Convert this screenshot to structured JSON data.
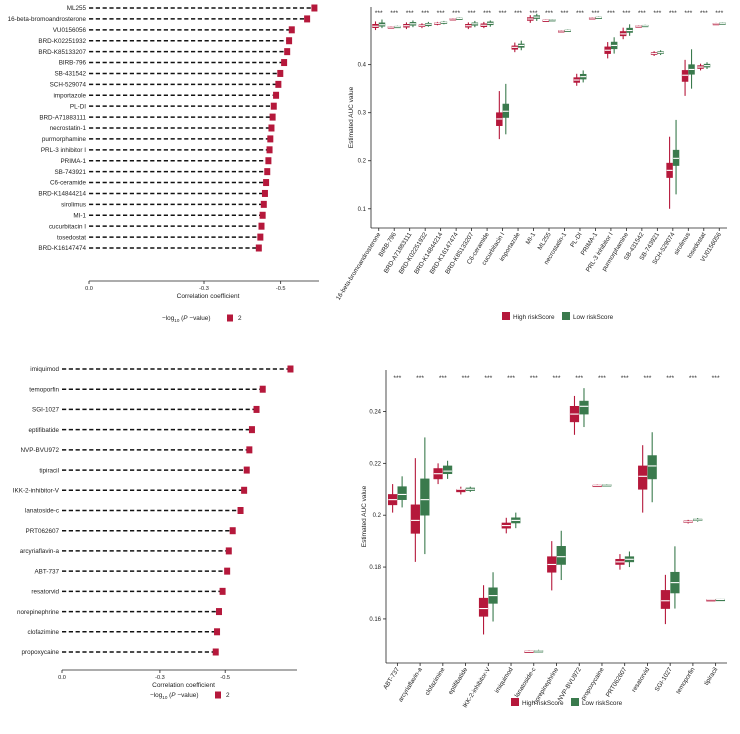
{
  "colors": {
    "high": "#b5183b",
    "low": "#3a7a4d",
    "axis": "#222222",
    "dash": "#111111"
  },
  "chart_data": [
    {
      "type": "lollipop",
      "panel": "top-left",
      "xlabel": "Correlation coefficient",
      "xlim": [
        0,
        -0.6
      ],
      "xticks": [
        {
          "v": 0.0,
          "label": "0.0"
        },
        {
          "v": -0.3,
          "label": "-0.3"
        },
        {
          "v": -0.5,
          "label": "-0.5"
        }
      ],
      "legend": {
        "title_prefix": "−log",
        "title_sub": "10",
        "title_suffix": " (",
        "title_p": "P",
        "title_end": " −value)",
        "value": "2"
      },
      "categories": [
        "ML255",
        "16-beta-bromoandrosterone",
        "VU0156056",
        "BRD-K02251932",
        "BRD-K85133207",
        "BIRB-796",
        "SB-431542",
        "SCH-529074",
        "importazole",
        "PL-DI",
        "BRD-A71883111",
        "necrostatin-1",
        "purmorphamine",
        "PRL-3 inhibitor I",
        "PRIMA-1",
        "SB-743921",
        "C6-ceramide",
        "BRD-K14844214",
        "sirolimus",
        "MI-1",
        "cucurbitacin I",
        "tosedostat",
        "BRD-K16147474"
      ],
      "values": [
        -0.588,
        -0.569,
        -0.529,
        -0.522,
        -0.517,
        -0.509,
        -0.499,
        -0.494,
        -0.488,
        -0.482,
        -0.479,
        -0.476,
        -0.473,
        -0.471,
        -0.468,
        -0.465,
        -0.462,
        -0.459,
        -0.456,
        -0.453,
        -0.45,
        -0.447,
        -0.443
      ]
    },
    {
      "type": "boxplot",
      "panel": "top-right",
      "ylabel": "Estimated AUC value",
      "ylim": [
        0.06,
        0.52
      ],
      "yticks": [
        0.1,
        0.2,
        0.3,
        0.4
      ],
      "significance": "***",
      "legend": {
        "high": "High riskScore",
        "low": "Low riskScore"
      },
      "categories": [
        "16-beta-bromoandrosterone",
        "BIRB-796",
        "BRD-A71883111",
        "BRD-K02251932",
        "BRD-K14844214",
        "BRD-K16147474",
        "BRD-K85133207",
        "C6-ceramide",
        "cucurbitacin I",
        "importazole",
        "MI-1",
        "ML255",
        "necrostatin-1",
        "PL-DI",
        "PRIMA-1",
        "PRL-3 inhibitor I",
        "purmorphamine",
        "SB-431542",
        "SB-743921",
        "SCH-529074",
        "sirolimus",
        "tosedostat",
        "VU0156056"
      ],
      "series": [
        {
          "name": "High riskScore",
          "boxes": [
            [
              0.472,
              0.477,
              0.48,
              0.484,
              0.49
            ],
            [
              0.476,
              0.477,
              0.478,
              0.479,
              0.48
            ],
            [
              0.474,
              0.478,
              0.481,
              0.484,
              0.488
            ],
            [
              0.476,
              0.479,
              0.481,
              0.483,
              0.486
            ],
            [
              0.482,
              0.484,
              0.486,
              0.487,
              0.489
            ],
            [
              0.493,
              0.494,
              0.495,
              0.496,
              0.497
            ],
            [
              0.474,
              0.478,
              0.481,
              0.484,
              0.488
            ],
            [
              0.476,
              0.479,
              0.482,
              0.485,
              0.489
            ],
            [
              0.245,
              0.273,
              0.287,
              0.3,
              0.345
            ],
            [
              0.426,
              0.432,
              0.436,
              0.439,
              0.446
            ],
            [
              0.487,
              0.492,
              0.495,
              0.498,
              0.503
            ],
            [
              0.49,
              0.491,
              0.492,
              0.493,
              0.494
            ],
            [
              0.468,
              0.469,
              0.47,
              0.471,
              0.472
            ],
            [
              0.356,
              0.363,
              0.368,
              0.373,
              0.381
            ],
            [
              0.495,
              0.496,
              0.497,
              0.498,
              0.499
            ],
            [
              0.413,
              0.423,
              0.43,
              0.437,
              0.447
            ],
            [
              0.453,
              0.46,
              0.464,
              0.469,
              0.477
            ],
            [
              0.478,
              0.479,
              0.48,
              0.481,
              0.482
            ],
            [
              0.418,
              0.421,
              0.423,
              0.425,
              0.428
            ],
            [
              0.1,
              0.165,
              0.18,
              0.195,
              0.25
            ],
            [
              0.335,
              0.365,
              0.378,
              0.388,
              0.41
            ],
            [
              0.388,
              0.392,
              0.395,
              0.398,
              0.402
            ],
            [
              0.483,
              0.484,
              0.485,
              0.486,
              0.487
            ]
          ]
        },
        {
          "name": "Low riskScore",
          "boxes": [
            [
              0.476,
              0.48,
              0.483,
              0.487,
              0.494
            ],
            [
              0.477,
              0.478,
              0.479,
              0.48,
              0.481
            ],
            [
              0.478,
              0.482,
              0.485,
              0.488,
              0.492
            ],
            [
              0.479,
              0.481,
              0.484,
              0.486,
              0.489
            ],
            [
              0.484,
              0.486,
              0.488,
              0.489,
              0.491
            ],
            [
              0.494,
              0.495,
              0.496,
              0.497,
              0.498
            ],
            [
              0.478,
              0.482,
              0.485,
              0.487,
              0.491
            ],
            [
              0.479,
              0.483,
              0.486,
              0.489,
              0.492
            ],
            [
              0.255,
              0.29,
              0.303,
              0.318,
              0.36
            ],
            [
              0.43,
              0.436,
              0.44,
              0.443,
              0.45
            ],
            [
              0.491,
              0.496,
              0.499,
              0.502,
              0.506
            ],
            [
              0.491,
              0.492,
              0.493,
              0.494,
              0.495
            ],
            [
              0.469,
              0.47,
              0.471,
              0.472,
              0.473
            ],
            [
              0.363,
              0.37,
              0.375,
              0.38,
              0.388
            ],
            [
              0.496,
              0.497,
              0.498,
              0.499,
              0.5
            ],
            [
              0.423,
              0.433,
              0.44,
              0.447,
              0.457
            ],
            [
              0.46,
              0.467,
              0.471,
              0.476,
              0.484
            ],
            [
              0.479,
              0.48,
              0.481,
              0.482,
              0.483
            ],
            [
              0.42,
              0.423,
              0.425,
              0.427,
              0.43
            ],
            [
              0.13,
              0.19,
              0.205,
              0.222,
              0.285
            ],
            [
              0.35,
              0.38,
              0.39,
              0.4,
              0.432
            ],
            [
              0.391,
              0.395,
              0.398,
              0.401,
              0.405
            ],
            [
              0.484,
              0.485,
              0.486,
              0.487,
              0.488
            ]
          ]
        }
      ]
    },
    {
      "type": "lollipop",
      "panel": "bottom-left",
      "xlabel": "Correlation coefficient",
      "xlim": [
        0,
        -0.72
      ],
      "xticks": [
        {
          "v": 0.0,
          "label": "0.0"
        },
        {
          "v": -0.3,
          "label": "-0.3"
        },
        {
          "v": -0.5,
          "label": "-0.5"
        }
      ],
      "legend": {
        "title_prefix": "−log",
        "title_sub": "10",
        "title_suffix": " (",
        "title_p": "P",
        "title_end": " −value)",
        "value": "2"
      },
      "categories": [
        "imiquimod",
        "temoporfin",
        "SGI-1027",
        "eptifibatide",
        "NVP-BVU972",
        "tipiracil",
        "IKK-2-inhibitor-V",
        "lanatoside-c",
        "PRT062607",
        "arcyriaflavin-a",
        "ABT-737",
        "resatorvid",
        "norepinephrine",
        "clofazimine",
        "propoxycaine"
      ],
      "values": [
        -0.7,
        -0.615,
        -0.596,
        -0.582,
        -0.574,
        -0.566,
        -0.558,
        -0.547,
        -0.523,
        -0.511,
        -0.506,
        -0.492,
        -0.481,
        -0.475,
        -0.471
      ]
    },
    {
      "type": "boxplot",
      "panel": "bottom-right",
      "ylabel": "Estimated AUC value",
      "ylim": [
        0.143,
        0.256
      ],
      "yticks": [
        0.16,
        0.18,
        0.2,
        0.22,
        0.24
      ],
      "significance": "***",
      "legend": {
        "high": "High riskScore",
        "low": "Low riskScore"
      },
      "categories": [
        "ABT-737",
        "arcyriaflavin-a",
        "clofazimine",
        "eptifibatide",
        "IKK-2-inhibitor-V",
        "imiquimod",
        "lanatoside-c",
        "norepinephrine",
        "NVP-BVU972",
        "propoxycaine",
        "PRT062607",
        "resatorvid",
        "SGI-1027",
        "temoporfin",
        "tipiracil"
      ],
      "series": [
        {
          "name": "High riskScore",
          "boxes": [
            [
              0.201,
              0.204,
              0.206,
              0.208,
              0.212
            ],
            [
              0.182,
              0.193,
              0.198,
              0.204,
              0.222
            ],
            [
              0.212,
              0.214,
              0.216,
              0.218,
              0.22
            ],
            [
              0.208,
              0.209,
              0.21,
              0.21,
              0.211
            ],
            [
              0.154,
              0.161,
              0.164,
              0.168,
              0.173
            ],
            [
              0.193,
              0.195,
              0.196,
              0.197,
              0.199
            ],
            [
              0.147,
              0.1472,
              0.1474,
              0.1476,
              0.1478
            ],
            [
              0.171,
              0.178,
              0.181,
              0.184,
              0.19
            ],
            [
              0.231,
              0.236,
              0.239,
              0.242,
              0.246
            ],
            [
              0.211,
              0.2112,
              0.2114,
              0.2116,
              0.2118
            ],
            [
              0.179,
              0.181,
              0.182,
              0.183,
              0.185
            ],
            [
              0.201,
              0.21,
              0.215,
              0.219,
              0.227
            ],
            [
              0.158,
              0.164,
              0.167,
              0.171,
              0.177
            ],
            [
              0.1968,
              0.1972,
              0.1975,
              0.1978,
              0.1982
            ],
            [
              0.1672,
              0.1673,
              0.1674,
              0.1675,
              0.1676
            ]
          ]
        },
        {
          "name": "Low riskScore",
          "boxes": [
            [
              0.203,
              0.206,
              0.208,
              0.211,
              0.215
            ],
            [
              0.185,
              0.2,
              0.206,
              0.214,
              0.23
            ],
            [
              0.214,
              0.216,
              0.217,
              0.219,
              0.221
            ],
            [
              0.209,
              0.2095,
              0.21,
              0.2105,
              0.211
            ],
            [
              0.159,
              0.166,
              0.169,
              0.172,
              0.178
            ],
            [
              0.195,
              0.197,
              0.198,
              0.199,
              0.201
            ],
            [
              0.1471,
              0.1473,
              0.1476,
              0.1478,
              0.1481
            ],
            [
              0.175,
              0.181,
              0.184,
              0.188,
              0.194
            ],
            [
              0.234,
              0.239,
              0.242,
              0.244,
              0.249
            ],
            [
              0.2112,
              0.2114,
              0.2116,
              0.2118,
              0.212
            ],
            [
              0.18,
              0.182,
              0.183,
              0.184,
              0.186
            ],
            [
              0.205,
              0.214,
              0.219,
              0.223,
              0.232
            ],
            [
              0.164,
              0.17,
              0.174,
              0.178,
              0.188
            ],
            [
              0.1975,
              0.1979,
              0.1982,
              0.1985,
              0.1989
            ],
            [
              0.1673,
              0.1674,
              0.1675,
              0.1676,
              0.1677
            ]
          ]
        }
      ]
    }
  ]
}
